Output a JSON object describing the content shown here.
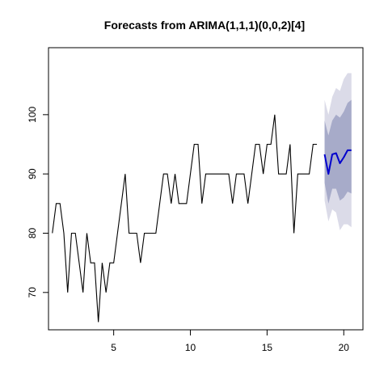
{
  "chart_data": {
    "type": "line",
    "title": "Forecasts from ARIMA(1,1,1)(0,0,2)[4]",
    "xlabel": "",
    "ylabel": "",
    "xlim": [
      0.75,
      21.25
    ],
    "ylim": [
      63.7,
      111.3
    ],
    "x_ticks": [
      5,
      10,
      15,
      20
    ],
    "y_ticks": [
      70,
      80,
      90,
      100
    ],
    "grid": false,
    "legend": "none",
    "colors": {
      "history": "#000000",
      "forecast": "#0000CD",
      "band_95": "#DBDBE8",
      "band_80": "#A7ABC9"
    },
    "series": [
      {
        "role": "history",
        "x_start": 1,
        "x_step": 0.25,
        "values": [
          80,
          85,
          85,
          80,
          70,
          80,
          80,
          75,
          70,
          80,
          75,
          75,
          65,
          75,
          70,
          75,
          75,
          80,
          85,
          90,
          80,
          80,
          80,
          75,
          80,
          80,
          80,
          80,
          85,
          90,
          90,
          85,
          90,
          85,
          85,
          85,
          90,
          95,
          95,
          85,
          90,
          90,
          90,
          90,
          90,
          90,
          90,
          85,
          90,
          90,
          90,
          85,
          90,
          95,
          95,
          90,
          95,
          95,
          100,
          90,
          90,
          90,
          95,
          80,
          90,
          90,
          90,
          90,
          95,
          95
        ]
      },
      {
        "role": "forecast",
        "x_start": 18.75,
        "x_step": 0.25,
        "values": [
          93.3,
          90.0,
          93.3,
          93.5,
          91.8,
          92.8,
          94.0,
          94.0
        ],
        "lower_80": [
          88.5,
          85.0,
          87.5,
          87.5,
          85.5,
          86.0,
          87.0,
          86.7
        ],
        "upper_80": [
          99.0,
          96.5,
          99.0,
          100.0,
          99.5,
          100.5,
          102.0,
          102.5
        ],
        "lower_95": [
          85.5,
          82.0,
          84.0,
          83.5,
          80.5,
          81.5,
          81.5,
          81.0
        ],
        "upper_95": [
          102.5,
          100.0,
          103.0,
          104.5,
          104.0,
          106.0,
          107.0,
          107.0
        ]
      }
    ]
  }
}
